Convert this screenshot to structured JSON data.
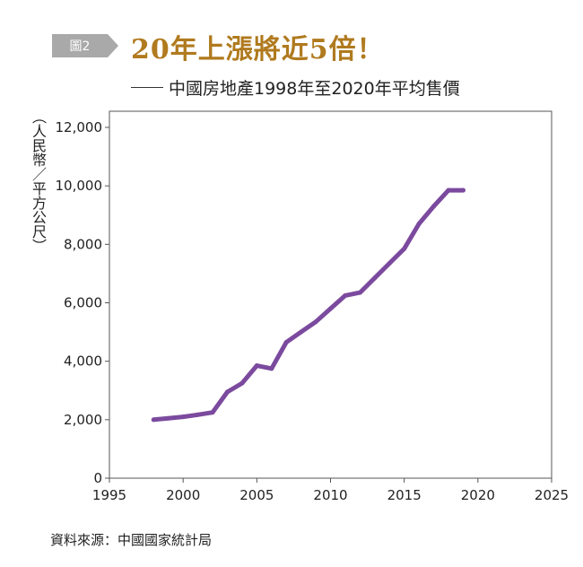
{
  "header": {
    "badge": "圖2",
    "title": "20年上漲將近5倍！",
    "subtitle": "中國房地產1998年至2020年平均售價"
  },
  "source": "資料來源：中國國家統計局",
  "colors": {
    "line": "#7b4a9e",
    "title": "#b07a1e",
    "badge": "#a9a9a9"
  },
  "chart_data": {
    "type": "line",
    "title": "20年上漲將近5倍！",
    "subtitle": "中國房地產1998年至2020年平均售價",
    "ylabel": "（人民幣／平方公尺）",
    "xlabel": "",
    "xlim": [
      1995,
      2025
    ],
    "ylim": [
      0,
      12000
    ],
    "xticks": [
      "1995",
      "2000",
      "2005",
      "2010",
      "2015",
      "2020",
      "2025"
    ],
    "yticks": [
      "0",
      "2,000",
      "4,000",
      "6,000",
      "8,000",
      "10,000",
      "12,000"
    ],
    "grid": false,
    "series": [
      {
        "x": [
          1998,
          1999,
          2000,
          2001,
          2002,
          2003,
          2004,
          2005,
          2006,
          2007,
          2008,
          2009,
          2010,
          2011,
          2012,
          2013,
          2014,
          2015,
          2016,
          2017,
          2018,
          2019
        ],
        "values": [
          2000,
          2050,
          2100,
          2170,
          2250,
          2950,
          3250,
          3850,
          3750,
          4650,
          5000,
          5350,
          5800,
          6250,
          6350,
          6850,
          7350,
          7850,
          8700,
          9300,
          9850,
          9850
        ]
      }
    ]
  }
}
